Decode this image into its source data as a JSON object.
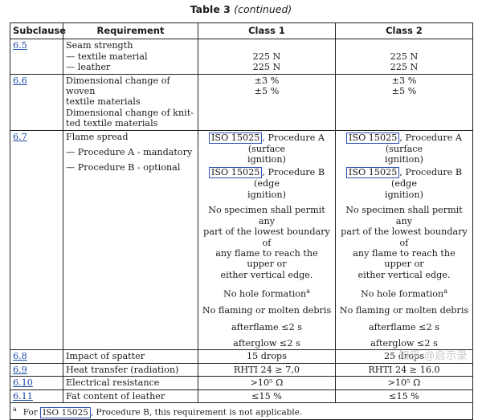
{
  "table_title": "Table 3",
  "table_title_suffix": "(continued)",
  "headers": [
    "Subclause",
    "Requirement",
    "Class 1",
    "Class 2"
  ],
  "rows": [
    {
      "subclause": "6.5",
      "requirement": [
        "Seam strength",
        "— textile material",
        "— leather"
      ],
      "class1": [
        "",
        "225 N",
        "225 N"
      ],
      "class2": [
        "",
        "225 N",
        "225 N"
      ]
    },
    {
      "subclause": "6.6",
      "requirement": [
        "Dimensional change of woven",
        "textile materials",
        "Dimensional change of knit-",
        "ted textile materials"
      ],
      "class1": [
        "±3 %",
        "±5 %"
      ],
      "class2": [
        "±3 %",
        "±5 %"
      ]
    },
    {
      "subclause": "6.7",
      "requirement": [
        "Flame spread",
        "— Procedure A - mandatory",
        "— Procedure B - optional"
      ],
      "iso_ref": "ISO 15025",
      "proc_a_text": ", Procedure A (surface",
      "proc_a_text2": "ignition)",
      "proc_b_text": ", Procedure B (edge",
      "proc_b_text2": "ignition)",
      "criteria": [
        "No specimen shall permit any",
        "part of the lowest boundary of",
        "any flame to reach the upper or",
        "either vertical edge."
      ],
      "hole": "No hole formation",
      "hole_sup": "a",
      "debris": "No flaming or molten debris",
      "afterflame": "afterflame ≤2 s",
      "afterglow": "afterglow ≤2 s"
    },
    {
      "subclause": "6.8",
      "requirement": "Impact of spatter",
      "class1": "15 drops",
      "class2": "25 drops"
    },
    {
      "subclause": "6.9",
      "requirement": "Heat transfer (radiation)",
      "class1": "RHTI 24 ≥ 7,0",
      "class2": "RHTI 24 ≥ 16.0"
    },
    {
      "subclause": "6.10",
      "requirement": "Electrical resistance",
      "class1": ">10⁵ Ω",
      "class2": ">10⁵ Ω"
    },
    {
      "subclause": "6.11",
      "requirement": "Fat content of leather",
      "class1": "≤15 %",
      "class2": "≤15 %"
    }
  ],
  "footnote": {
    "marker": "a",
    "pre": "For ",
    "ref": "ISO 15025",
    "post": ", Procedure B, this requirement is not applicable."
  },
  "watermark": "知乎 @启示录"
}
